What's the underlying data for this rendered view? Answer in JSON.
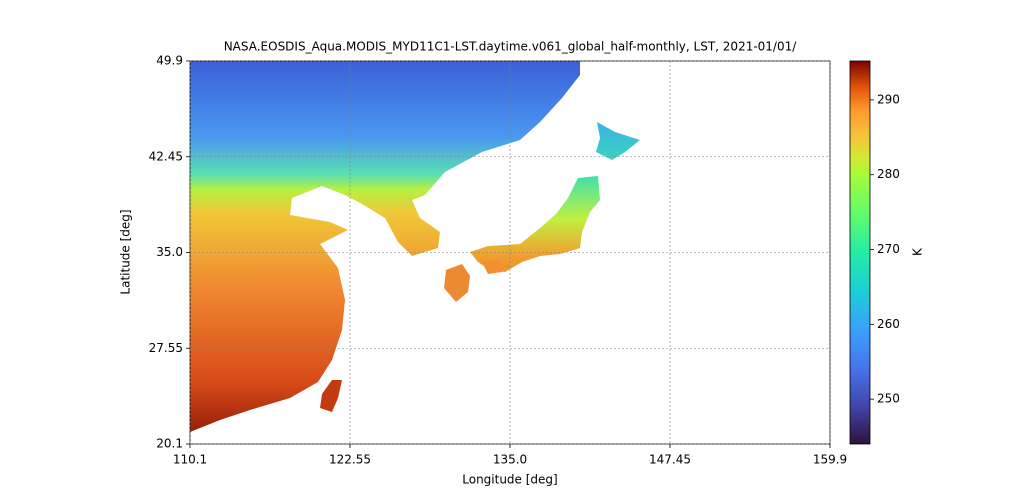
{
  "chart_data": {
    "type": "heatmap",
    "title": "NASA.EOSDIS_Aqua.MODIS_MYD11C1-LST.daytime.v061_global_half-monthly, LST, 2021-01/01/",
    "x_label": "Longitude [deg]",
    "y_label": "Latitude [deg]",
    "xlim": [
      110.1,
      159.9
    ],
    "ylim": [
      20.1,
      49.9
    ],
    "xticks": [
      110.1,
      122.55,
      {
        "value": 135,
        "label": "135.0"
      },
      147.45,
      159.9
    ],
    "yticks": [
      20.1,
      27.55,
      {
        "value": 35,
        "label": "35.0"
      },
      42.45,
      49.9
    ],
    "grid": true,
    "colorbar": {
      "label": "K",
      "colormap": "turbo",
      "lim": [
        244,
        295.2
      ],
      "ticks": [
        250,
        260,
        270,
        280,
        290
      ]
    }
  }
}
